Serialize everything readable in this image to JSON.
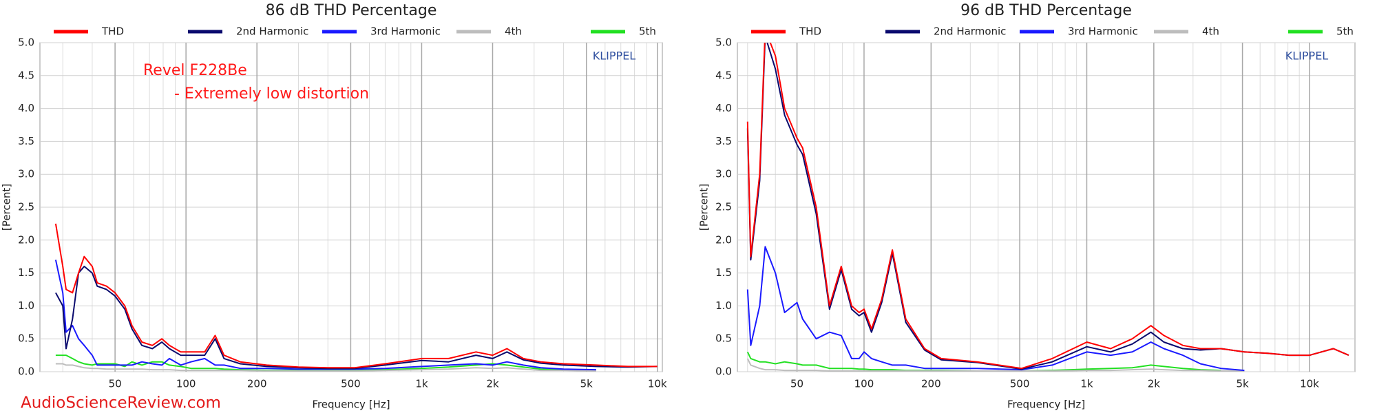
{
  "footer": "AudioScienceReview.com",
  "chart_data": [
    {
      "type": "line",
      "title": "86 dB THD Percentage",
      "xlabel": "Frequency [Hz]",
      "ylabel": "[Percent]",
      "log_x": true,
      "grid": true,
      "xlim": [
        24,
        10500
      ],
      "ylim": [
        0,
        5
      ],
      "xticks": [
        50,
        100,
        200,
        500,
        {
          "value": 1000,
          "label": "1k"
        },
        {
          "value": 2000,
          "label": "2k"
        },
        {
          "value": 5000,
          "label": "5k"
        },
        {
          "value": 10000,
          "label": "10k"
        }
      ],
      "yticks": [
        {
          "value": 0,
          "label": "0.0"
        },
        0.5,
        {
          "value": 1,
          "label": "1.0"
        },
        1.5,
        {
          "value": 2,
          "label": "2.0"
        },
        2.5,
        {
          "value": 3,
          "label": "3.0"
        },
        3.5,
        {
          "value": 4,
          "label": "4.0"
        },
        4.5,
        {
          "value": 5,
          "label": "5.0"
        }
      ],
      "annotations": [
        {
          "text": "Revel F228Be",
          "color": "#ff1a1a"
        },
        {
          "text": "- Extremely low distortion",
          "color": "#ff1a1a"
        },
        {
          "text": "KLIPPEL",
          "color": "#2f4f9f"
        }
      ],
      "x": [
        28,
        30,
        31,
        33,
        35,
        37,
        40,
        42,
        46,
        50,
        55,
        59,
        65,
        72,
        79,
        85,
        95,
        105,
        120,
        133,
        145,
        170,
        220,
        300,
        400,
        520,
        700,
        1000,
        1300,
        1700,
        2000,
        2300,
        2700,
        3200,
        4000,
        5500,
        7500,
        10000
      ],
      "series": [
        {
          "name": "THD",
          "color": "#ff0000",
          "values": [
            2.25,
            1.6,
            1.25,
            1.2,
            1.5,
            1.75,
            1.6,
            1.35,
            1.3,
            1.2,
            1.0,
            0.7,
            0.45,
            0.4,
            0.5,
            0.4,
            0.3,
            0.3,
            0.3,
            0.55,
            0.25,
            0.15,
            0.1,
            0.07,
            0.06,
            0.06,
            0.12,
            0.2,
            0.2,
            0.3,
            0.25,
            0.35,
            0.2,
            0.15,
            0.12,
            0.1,
            0.08,
            0.08
          ]
        },
        {
          "name": "2nd Harmonic",
          "color": "#0a0a6e",
          "values": [
            1.2,
            1.0,
            0.35,
            0.8,
            1.5,
            1.6,
            1.5,
            1.3,
            1.25,
            1.15,
            0.95,
            0.65,
            0.4,
            0.35,
            0.45,
            0.35,
            0.25,
            0.25,
            0.25,
            0.5,
            0.2,
            0.12,
            0.08,
            0.06,
            0.05,
            0.05,
            0.1,
            0.17,
            0.15,
            0.25,
            0.2,
            0.3,
            0.18,
            0.13,
            0.1,
            0.08,
            0.07,
            0.08
          ]
        },
        {
          "name": "3rd Harmonic",
          "color": "#1a1aff",
          "values": [
            1.7,
            1.2,
            0.6,
            0.7,
            0.5,
            0.4,
            0.25,
            0.1,
            0.1,
            0.1,
            0.1,
            0.1,
            0.15,
            0.12,
            0.1,
            0.2,
            0.1,
            0.15,
            0.2,
            0.1,
            0.1,
            0.05,
            0.05,
            0.04,
            0.04,
            0.04,
            0.05,
            0.08,
            0.1,
            0.12,
            0.1,
            0.15,
            0.1,
            0.06,
            0.04,
            0.03,
            null,
            null
          ]
        },
        {
          "name": "4th",
          "color": "#bdbdbd",
          "values": [
            0.12,
            0.12,
            0.1,
            0.1,
            0.08,
            0.06,
            0.05,
            0.05,
            0.04,
            0.04,
            0.04,
            0.04,
            0.04,
            0.03,
            0.03,
            0.03,
            0.02,
            0.02,
            0.02,
            0.02,
            0.02,
            0.02,
            0.01,
            0.01,
            0.01,
            0.01,
            0.02,
            0.03,
            0.04,
            0.06,
            0.05,
            0.06,
            0.04,
            0.02,
            0.02,
            0.01,
            null,
            null
          ]
        },
        {
          "name": "5th",
          "color": "#22e022",
          "values": [
            0.25,
            0.25,
            0.25,
            0.2,
            0.15,
            0.12,
            0.1,
            0.12,
            0.12,
            0.12,
            0.08,
            0.15,
            0.1,
            0.15,
            0.15,
            0.1,
            0.08,
            0.05,
            0.05,
            0.05,
            0.04,
            0.03,
            0.02,
            0.02,
            0.02,
            0.02,
            0.03,
            0.05,
            0.07,
            0.1,
            0.12,
            0.1,
            0.07,
            0.04,
            0.03,
            null,
            null,
            null
          ]
        }
      ]
    },
    {
      "type": "line",
      "title": "96 dB THD Percentage",
      "xlabel": "Frequency [Hz]",
      "ylabel": "[Percent]",
      "log_x": true,
      "grid": true,
      "xlim": [
        27,
        16000
      ],
      "ylim": [
        0,
        5
      ],
      "xticks": [
        50,
        100,
        200,
        500,
        {
          "value": 1000,
          "label": "1k"
        },
        {
          "value": 2000,
          "label": "2k"
        },
        {
          "value": 5000,
          "label": "5k"
        },
        {
          "value": 10000,
          "label": "10k"
        }
      ],
      "yticks": [
        {
          "value": 0,
          "label": "0.0"
        },
        0.5,
        {
          "value": 1,
          "label": "1.0"
        },
        1.5,
        {
          "value": 2,
          "label": "2.0"
        },
        2.5,
        {
          "value": 3,
          "label": "3.0"
        },
        3.5,
        {
          "value": 4,
          "label": "4.0"
        },
        4.5,
        {
          "value": 5,
          "label": "5.0"
        }
      ],
      "annotations": [
        {
          "text": "KLIPPEL",
          "color": "#2f4f9f"
        }
      ],
      "x": [
        30,
        31,
        34,
        36,
        40,
        44,
        50,
        53,
        61,
        70,
        79,
        88,
        95,
        100,
        108,
        120,
        134,
        154,
        187,
        222,
        322,
        510,
        700,
        1000,
        1280,
        1600,
        1940,
        2220,
        2700,
        3240,
        4000,
        5100,
        6500,
        8100,
        10000,
        12800,
        15000
      ],
      "series": [
        {
          "name": "THD",
          "color": "#ff0000",
          "values": [
            3.8,
            1.75,
            3.0,
            5.2,
            4.8,
            4.0,
            3.55,
            3.4,
            2.5,
            1.0,
            1.6,
            1.0,
            0.9,
            0.95,
            0.65,
            1.1,
            1.85,
            0.8,
            0.35,
            0.2,
            0.15,
            0.05,
            0.2,
            0.45,
            0.35,
            0.5,
            0.7,
            0.55,
            0.4,
            0.35,
            0.35,
            0.3,
            0.28,
            0.25,
            0.25,
            0.35,
            0.25
          ]
        },
        {
          "name": "2nd Harmonic",
          "color": "#0a0a6e",
          "values": [
            3.7,
            1.7,
            2.9,
            5.1,
            4.6,
            3.9,
            3.45,
            3.3,
            2.4,
            0.95,
            1.55,
            0.95,
            0.85,
            0.9,
            0.6,
            1.05,
            1.8,
            0.75,
            0.33,
            0.18,
            0.14,
            0.04,
            0.15,
            0.38,
            0.3,
            0.42,
            0.6,
            0.45,
            0.35,
            0.33,
            0.35,
            0.3,
            0.28,
            0.25,
            0.25,
            0.35,
            0.25
          ]
        },
        {
          "name": "3rd Harmonic",
          "color": "#1a1aff",
          "values": [
            1.25,
            0.4,
            1.0,
            1.9,
            1.5,
            0.9,
            1.05,
            0.8,
            0.5,
            0.6,
            0.55,
            0.2,
            0.2,
            0.3,
            0.2,
            0.15,
            0.1,
            0.1,
            0.05,
            0.05,
            0.05,
            0.03,
            0.1,
            0.3,
            0.25,
            0.3,
            0.45,
            0.35,
            0.25,
            0.12,
            0.05,
            0.02,
            null,
            null,
            null,
            null,
            null
          ]
        },
        {
          "name": "4th",
          "color": "#bdbdbd",
          "values": [
            0.2,
            0.1,
            0.05,
            0.03,
            0.03,
            0.02,
            0.02,
            0.02,
            0.02,
            0.01,
            0.01,
            0.01,
            0.01,
            0.01,
            0.01,
            0.01,
            0.01,
            0.01,
            0.01,
            0.01,
            0.01,
            0.01,
            0.01,
            0.02,
            0.02,
            0.03,
            0.04,
            0.03,
            0.02,
            0.02,
            0.01,
            0.01,
            null,
            null,
            null,
            null,
            null
          ]
        },
        {
          "name": "5th",
          "color": "#22e022",
          "values": [
            0.3,
            0.2,
            0.15,
            0.15,
            0.12,
            0.15,
            0.12,
            0.1,
            0.1,
            0.05,
            0.05,
            0.05,
            0.04,
            0.04,
            0.03,
            0.03,
            0.03,
            0.02,
            0.02,
            0.02,
            0.01,
            0.01,
            0.02,
            0.04,
            0.05,
            0.06,
            0.1,
            0.08,
            0.05,
            0.03,
            0.02,
            null,
            null,
            null,
            null,
            null,
            null
          ]
        }
      ]
    }
  ]
}
